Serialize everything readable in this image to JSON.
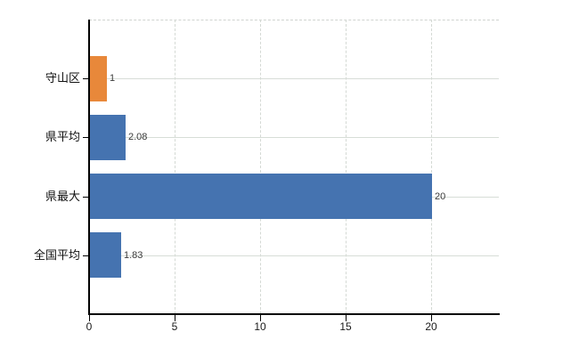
{
  "chart_data": {
    "type": "bar",
    "orientation": "horizontal",
    "title": "",
    "categories": [
      "守山区",
      "県平均",
      "県最大",
      "全国平均"
    ],
    "values": [
      1,
      2.08,
      20,
      1.83
    ],
    "value_labels": [
      "1",
      "2.08",
      "20",
      "1.83"
    ],
    "bar_colors": [
      "#e8883a",
      "#4573b0",
      "#4573b0",
      "#4573b0"
    ],
    "x_ticks": [
      0,
      5,
      10,
      15,
      20
    ],
    "x_tick_labels": [
      "0",
      "5",
      "10",
      "15",
      "20"
    ],
    "xlim": [
      0,
      23.96
    ],
    "grid": true,
    "legend": false,
    "colors": {
      "highlight_bar": "#e8883a",
      "default_bar": "#4573b0",
      "gridline": "#d7ddd7",
      "axis": "#000000",
      "value_label_text": "#3a3a3a",
      "tick_label_text": "#1a1a1a"
    }
  }
}
